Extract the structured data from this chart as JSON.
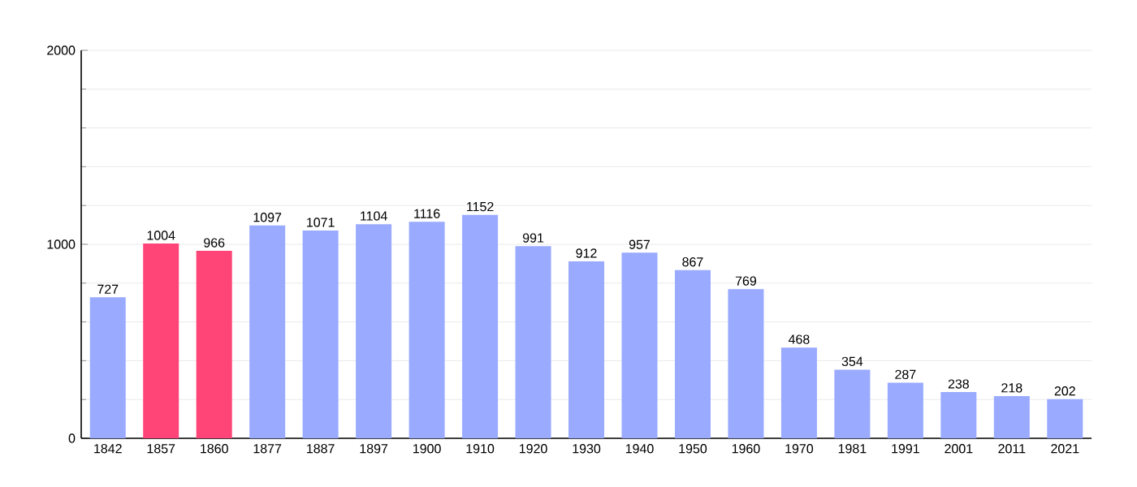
{
  "chart_data": {
    "type": "bar",
    "categories": [
      "1842",
      "1857",
      "1860",
      "1877",
      "1887",
      "1897",
      "1900",
      "1910",
      "1920",
      "1930",
      "1940",
      "1950",
      "1960",
      "1970",
      "1981",
      "1991",
      "2001",
      "2011",
      "2021"
    ],
    "values": [
      727,
      1004,
      966,
      1097,
      1071,
      1104,
      1116,
      1152,
      991,
      912,
      957,
      867,
      769,
      468,
      354,
      287,
      238,
      218,
      202
    ],
    "colors": [
      "#99aaff",
      "#ff4477",
      "#ff4477",
      "#99aaff",
      "#99aaff",
      "#99aaff",
      "#99aaff",
      "#99aaff",
      "#99aaff",
      "#99aaff",
      "#99aaff",
      "#99aaff",
      "#99aaff",
      "#99aaff",
      "#99aaff",
      "#99aaff",
      "#99aaff",
      "#99aaff",
      "#99aaff"
    ],
    "ylim": [
      0,
      2000
    ],
    "yticks": [
      0,
      {
        "value": 200,
        "label": null
      },
      {
        "value": 400,
        "label": null
      },
      {
        "value": 600,
        "label": null
      },
      {
        "value": 800,
        "label": null
      },
      1000,
      {
        "value": 1200,
        "label": null
      },
      {
        "value": 1400,
        "label": null
      },
      {
        "value": 1600,
        "label": null
      },
      {
        "value": 1800,
        "label": null
      },
      2000
    ],
    "grid": "y",
    "data_labels": true
  }
}
